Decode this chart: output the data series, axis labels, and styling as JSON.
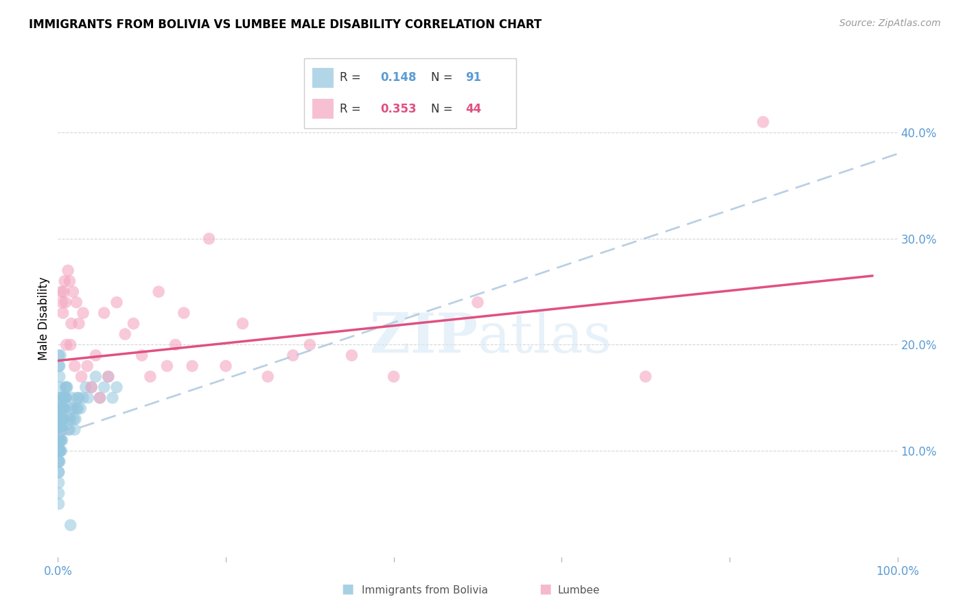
{
  "title": "IMMIGRANTS FROM BOLIVIA VS LUMBEE MALE DISABILITY CORRELATION CHART",
  "source": "Source: ZipAtlas.com",
  "ylabel": "Male Disability",
  "ytick_labels": [
    "10.0%",
    "20.0%",
    "30.0%",
    "40.0%"
  ],
  "ytick_values": [
    0.1,
    0.2,
    0.3,
    0.4
  ],
  "xlim": [
    0.0,
    1.0
  ],
  "ylim": [
    0.0,
    0.45
  ],
  "bolivia_R": 0.148,
  "bolivia_N": 91,
  "lumbee_R": 0.353,
  "lumbee_N": 44,
  "bolivia_color": "#92c5de",
  "lumbee_color": "#f4a6c0",
  "bolivia_trend_color": "#92c5de",
  "lumbee_trend_color": "#e05080",
  "watermark": "ZIPatlas",
  "bolivia_scatter_x": [
    0.001,
    0.001,
    0.001,
    0.001,
    0.001,
    0.001,
    0.001,
    0.001,
    0.001,
    0.001,
    0.001,
    0.001,
    0.001,
    0.001,
    0.001,
    0.001,
    0.001,
    0.001,
    0.001,
    0.001,
    0.002,
    0.002,
    0.002,
    0.002,
    0.002,
    0.002,
    0.002,
    0.002,
    0.002,
    0.002,
    0.003,
    0.003,
    0.003,
    0.003,
    0.003,
    0.003,
    0.003,
    0.004,
    0.004,
    0.004,
    0.004,
    0.004,
    0.005,
    0.005,
    0.005,
    0.005,
    0.006,
    0.006,
    0.006,
    0.006,
    0.007,
    0.007,
    0.007,
    0.008,
    0.008,
    0.009,
    0.009,
    0.01,
    0.01,
    0.011,
    0.012,
    0.013,
    0.014,
    0.015,
    0.016,
    0.017,
    0.018,
    0.019,
    0.02,
    0.021,
    0.022,
    0.023,
    0.024,
    0.025,
    0.027,
    0.03,
    0.033,
    0.036,
    0.04,
    0.045,
    0.05,
    0.055,
    0.06,
    0.065,
    0.07,
    0.001,
    0.001,
    0.002,
    0.002,
    0.003,
    0.015
  ],
  "bolivia_scatter_y": [
    0.1,
    0.11,
    0.12,
    0.13,
    0.14,
    0.08,
    0.09,
    0.07,
    0.06,
    0.05,
    0.1,
    0.11,
    0.12,
    0.08,
    0.09,
    0.1,
    0.11,
    0.12,
    0.13,
    0.14,
    0.1,
    0.11,
    0.12,
    0.13,
    0.14,
    0.15,
    0.09,
    0.1,
    0.11,
    0.12,
    0.1,
    0.11,
    0.12,
    0.13,
    0.14,
    0.15,
    0.16,
    0.1,
    0.11,
    0.12,
    0.13,
    0.14,
    0.11,
    0.12,
    0.13,
    0.14,
    0.12,
    0.13,
    0.14,
    0.15,
    0.13,
    0.14,
    0.15,
    0.14,
    0.15,
    0.15,
    0.16,
    0.15,
    0.16,
    0.16,
    0.12,
    0.13,
    0.12,
    0.13,
    0.14,
    0.15,
    0.14,
    0.13,
    0.12,
    0.13,
    0.14,
    0.15,
    0.14,
    0.15,
    0.14,
    0.15,
    0.16,
    0.15,
    0.16,
    0.17,
    0.15,
    0.16,
    0.17,
    0.15,
    0.16,
    0.19,
    0.18,
    0.17,
    0.18,
    0.19,
    0.03
  ],
  "lumbee_scatter_x": [
    0.004,
    0.005,
    0.006,
    0.007,
    0.008,
    0.009,
    0.01,
    0.012,
    0.014,
    0.015,
    0.016,
    0.018,
    0.02,
    0.022,
    0.025,
    0.028,
    0.03,
    0.035,
    0.04,
    0.045,
    0.05,
    0.055,
    0.06,
    0.07,
    0.08,
    0.09,
    0.1,
    0.11,
    0.12,
    0.13,
    0.14,
    0.15,
    0.16,
    0.18,
    0.2,
    0.22,
    0.25,
    0.28,
    0.3,
    0.35,
    0.4,
    0.5,
    0.7,
    0.84
  ],
  "lumbee_scatter_y": [
    0.25,
    0.24,
    0.23,
    0.25,
    0.26,
    0.24,
    0.2,
    0.27,
    0.26,
    0.2,
    0.22,
    0.25,
    0.18,
    0.24,
    0.22,
    0.17,
    0.23,
    0.18,
    0.16,
    0.19,
    0.15,
    0.23,
    0.17,
    0.24,
    0.21,
    0.22,
    0.19,
    0.17,
    0.25,
    0.18,
    0.2,
    0.23,
    0.18,
    0.3,
    0.18,
    0.22,
    0.17,
    0.19,
    0.2,
    0.19,
    0.17,
    0.24,
    0.17,
    0.41
  ],
  "bolivia_trend_x": [
    0.0,
    1.0
  ],
  "bolivia_trend_y": [
    0.115,
    0.38
  ],
  "lumbee_trend_x": [
    0.0,
    0.97
  ],
  "lumbee_trend_y": [
    0.185,
    0.265
  ]
}
